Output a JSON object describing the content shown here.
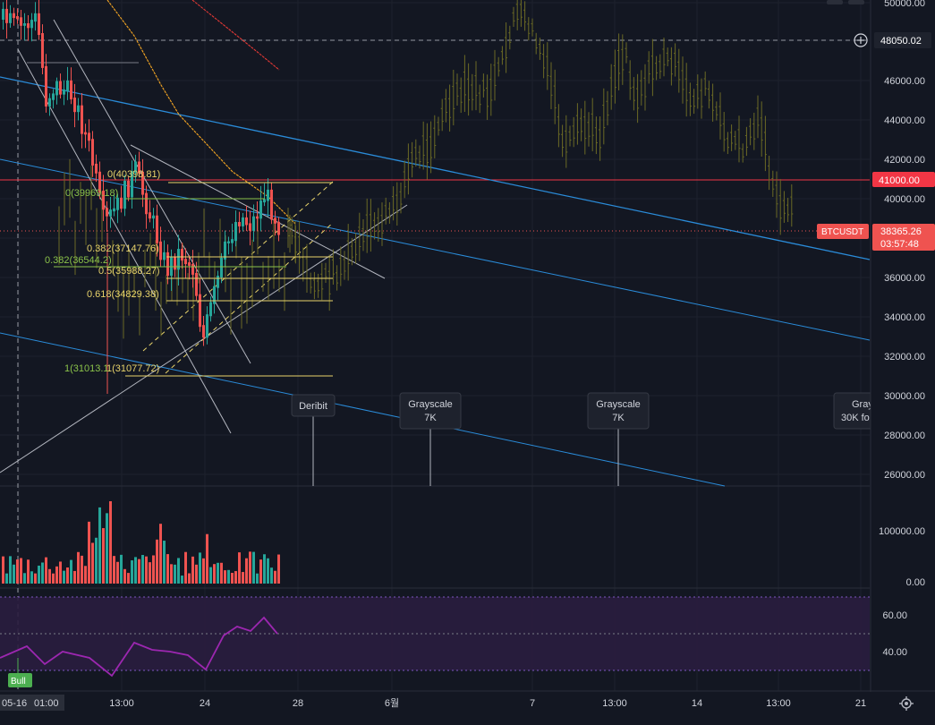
{
  "colors": {
    "background": "#131722",
    "grid": "#1e222d",
    "axis_text": "#d1d4dc",
    "up": "#26a69a",
    "down": "#ef5350",
    "ghost": "#6b6a25",
    "fib_yellow": "#e8d36b",
    "fib_green": "#8bc34a",
    "trend_blue": "#2a8bd8",
    "trend_white": "#b2b5be",
    "step_orange": "#f5a623",
    "step_red": "#e53935",
    "rsi_line": "#9c27b0",
    "rsi_band": "#2a1d3f",
    "current_tag": "#ef5350"
  },
  "price_axis": {
    "ticks": [
      "50000.00",
      "46000.00",
      "44000.00",
      "42000.00",
      "40000.00",
      "36000.00",
      "34000.00",
      "32000.00",
      "30000.00",
      "28000.00",
      "26000.00"
    ],
    "crosshair_label": "48050.02",
    "level_label": "41000.00",
    "symbol_label": "BTCUSDT",
    "current_price": "38365.26",
    "countdown": "03:57:48"
  },
  "volume_axis": {
    "ticks": [
      "100000.00",
      "0.00"
    ]
  },
  "rsi_axis": {
    "ticks": [
      "60.00",
      "40.00"
    ]
  },
  "time_axis": {
    "labels": [
      "05-16",
      "01:00",
      "13:00",
      "24",
      "28",
      "6월",
      "7",
      "13:00",
      "14",
      "13:00",
      "21"
    ]
  },
  "fib_labels": {
    "yellow": [
      "0(40398.81)",
      "0.382(37147.76)",
      "0.5(35988.27)",
      "0.618(34829.38)",
      "1(31077.72)"
    ],
    "green": [
      "0(39969.18)",
      "0.382(36544.2)",
      "1(31013.1"
    ]
  },
  "events": [
    {
      "title": "Deribit",
      "sub": ""
    },
    {
      "title": "Grayscale",
      "sub": "7K"
    },
    {
      "title": "Grayscale",
      "sub": "7K"
    },
    {
      "title": "Gray",
      "sub": "30K fo"
    }
  ],
  "bull_badge": "Bull",
  "chart_data": [
    {
      "type": "line",
      "symbol": "BTCUSDT",
      "series": [
        {
          "name": "BTCUSDT",
          "x": [
            "05-16",
            "13:00",
            "24",
            "28",
            "6월",
            "7",
            "13:00",
            "14",
            "13:00"
          ],
          "values": [
            48000,
            37500,
            32000,
            37200,
            40500,
            48600,
            46200,
            46500,
            38365.26
          ]
        }
      ],
      "ylim": [
        25500,
        50300
      ],
      "annotations": [
        "48050.02",
        "41000.00",
        "38365.26"
      ]
    },
    {
      "type": "bar",
      "ylim": [
        0,
        160000
      ]
    },
    {
      "type": "line",
      "ylim": [
        30,
        70
      ]
    }
  ]
}
